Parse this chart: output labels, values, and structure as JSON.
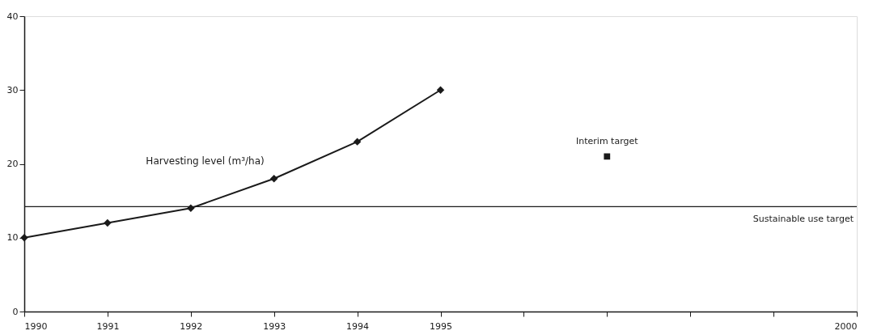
{
  "chart_data": {
    "type": "line",
    "x": [
      1990,
      1991,
      1992,
      1993,
      1994,
      1995
    ],
    "series": [
      {
        "name": "Harvesting level (m³/ha)",
        "color": "#1a1a1a",
        "values": [
          10,
          12,
          14,
          18,
          23,
          30
        ]
      },
      {
        "name": "Interim target",
        "type": "scatter",
        "marker": "square",
        "color": "#1a1a1a",
        "x": [
          1997
        ],
        "values": [
          21
        ]
      }
    ],
    "xlim": [
      1990,
      2000
    ],
    "xticks": [
      1990,
      1991,
      1992,
      1993,
      1994,
      1995,
      {
        "value": 1996,
        "label": null
      },
      {
        "value": 1997,
        "label": null
      },
      {
        "value": 1998,
        "label": null
      },
      {
        "value": 1999,
        "label": null
      },
      2000
    ],
    "ylim": [
      0,
      40
    ],
    "yticks": [
      0,
      10,
      20,
      30,
      40
    ],
    "ref_lines": [
      {
        "axis": "y",
        "value": 14.2,
        "label": "Sustainable use target",
        "color": "#1a1a1a"
      }
    ],
    "marker": "diamond",
    "line_style": "solid",
    "grid": false,
    "legend": false
  }
}
